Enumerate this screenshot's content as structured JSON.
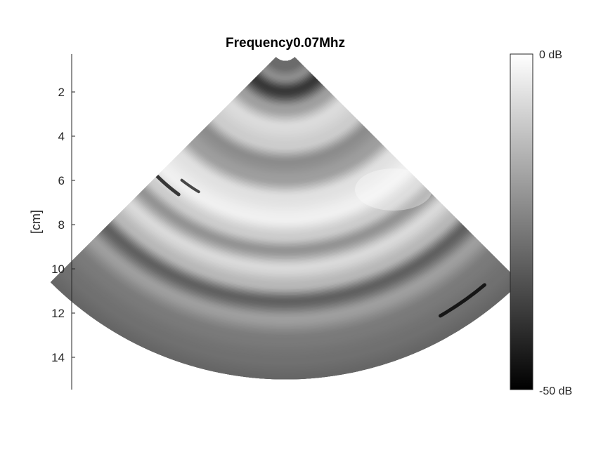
{
  "chart_data": {
    "type": "heatmap",
    "title": "Frequency0.07Mhz",
    "ylabel": "[cm]",
    "y_ticks": [
      2,
      4,
      6,
      8,
      10,
      12,
      14
    ],
    "ylim": [
      0.3,
      15.3
    ],
    "sector": {
      "apex_depth_cm": 0.0,
      "inner_radius_cm": 0.6,
      "outer_radius_cm": 15.0,
      "half_angle_deg": 45
    },
    "colorbar": {
      "max_label": "0 dB",
      "min_label": "-50 dB",
      "range_db": [
        -50,
        0
      ],
      "colormap": "gray"
    },
    "intensity_rings": [
      {
        "depth_cm": 0.9,
        "level": 0.42
      },
      {
        "depth_cm": 1.4,
        "level": 0.55
      },
      {
        "depth_cm": 2.0,
        "level": 0.22
      },
      {
        "depth_cm": 2.8,
        "level": 0.62
      },
      {
        "depth_cm": 3.6,
        "level": 0.86
      },
      {
        "depth_cm": 4.5,
        "level": 0.8
      },
      {
        "depth_cm": 5.2,
        "level": 0.55
      },
      {
        "depth_cm": 6.0,
        "level": 0.62
      },
      {
        "depth_cm": 6.8,
        "level": 0.88
      },
      {
        "depth_cm": 7.8,
        "level": 0.94
      },
      {
        "depth_cm": 8.6,
        "level": 0.8
      },
      {
        "depth_cm": 9.2,
        "level": 0.58
      },
      {
        "depth_cm": 10.0,
        "level": 0.85
      },
      {
        "depth_cm": 10.8,
        "level": 0.72
      },
      {
        "depth_cm": 11.5,
        "level": 0.38
      },
      {
        "depth_cm": 12.3,
        "level": 0.62
      },
      {
        "depth_cm": 13.2,
        "level": 0.48
      },
      {
        "depth_cm": 14.2,
        "level": 0.44
      },
      {
        "depth_cm": 15.0,
        "level": 0.4
      }
    ]
  }
}
